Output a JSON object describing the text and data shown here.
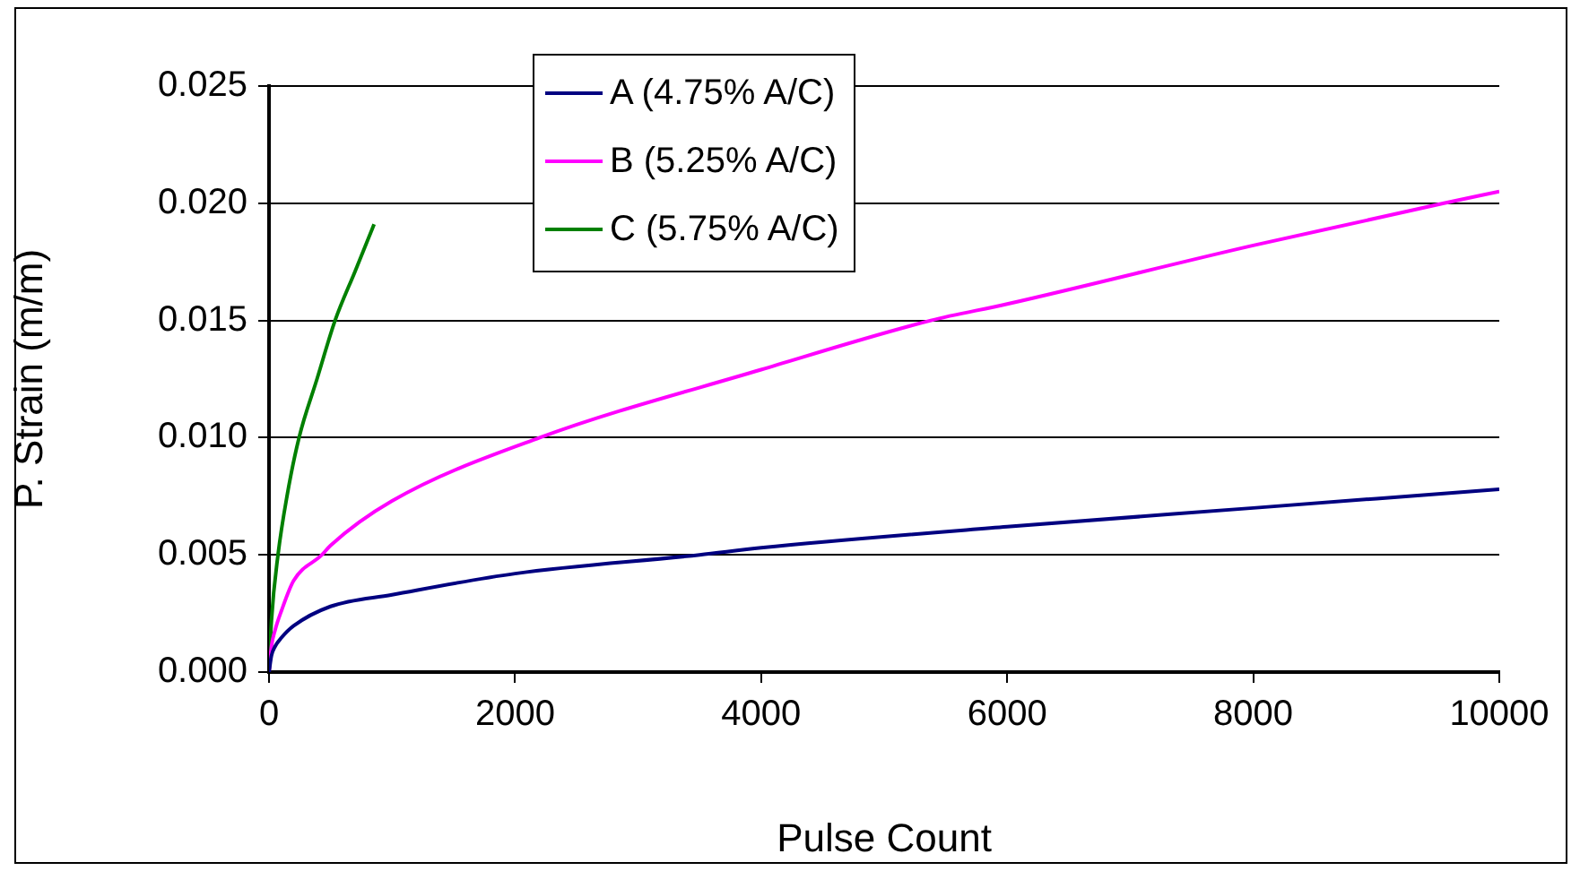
{
  "chart_data": {
    "type": "line",
    "xlabel": "Pulse Count",
    "ylabel": "P. Strain (m/m)",
    "xlim": [
      0,
      10000
    ],
    "xticks": [
      0,
      2000,
      4000,
      6000,
      8000,
      10000
    ],
    "ylim": [
      0,
      0.025
    ],
    "yticks": [
      {
        "value": 0,
        "label": "0.000"
      },
      {
        "value": 0.005,
        "label": "0.005"
      },
      {
        "value": 0.01,
        "label": "0.010"
      },
      {
        "value": 0.015,
        "label": "0.015"
      },
      {
        "value": 0.02,
        "label": "0.020"
      },
      {
        "value": 0.025,
        "label": "0.025"
      }
    ],
    "grid": "y",
    "legend": "top",
    "marker": "none",
    "line_style": "solid",
    "series": [
      {
        "name": "A (4.75% A/C)",
        "color": "#000080",
        "x": [
          0,
          20,
          50,
          100,
          200,
          500,
          1000,
          2000,
          3500,
          4000,
          6000,
          8000,
          10000
        ],
        "values": [
          0,
          0.0007,
          0.0011,
          0.00146,
          0.00197,
          0.0028,
          0.0033,
          0.0042,
          0.005,
          0.0053,
          0.0062,
          0.007,
          0.0078
        ]
      },
      {
        "name": "B (5.25% A/C)",
        "color": "#ff00ff",
        "x": [
          0,
          20,
          50,
          100,
          200,
          430,
          500,
          1000,
          2200,
          4000,
          5380,
          6000,
          8000,
          9550,
          10000
        ],
        "values": [
          0,
          0.0011,
          0.0018,
          0.0026,
          0.0039,
          0.005,
          0.0054,
          0.0073,
          0.01,
          0.0129,
          0.015,
          0.0157,
          0.0182,
          0.02,
          0.0205
        ]
      },
      {
        "name": "C (5.75% A/C)",
        "color": "#008000",
        "x": [
          0,
          20,
          73,
          146,
          244,
          390,
          537,
          700,
          854
        ],
        "values": [
          0,
          0.0022,
          0.005,
          0.0075,
          0.01,
          0.0125,
          0.015,
          0.0171,
          0.0191
        ]
      }
    ]
  }
}
